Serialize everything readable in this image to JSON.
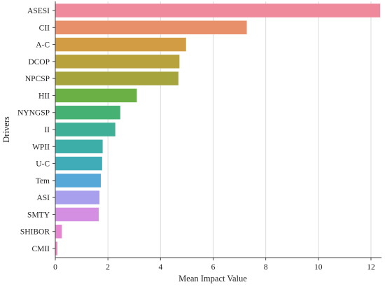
{
  "chart_data": {
    "type": "bar",
    "orientation": "horizontal",
    "xlabel": "Mean Impact Value",
    "ylabel": "Drivers",
    "xlim": [
      0,
      12.4
    ],
    "xticks": [
      "0",
      "2",
      "4",
      "6",
      "8",
      "10",
      "12"
    ],
    "grid": "vertical",
    "categories": [
      "ASESI",
      "CII",
      "A-C",
      "DCOP",
      "NPCSP",
      "HII",
      "NYNGSP",
      "II",
      "WPII",
      "U-C",
      "Tem",
      "ASI",
      "SMTY",
      "SHIBOR",
      "CMII"
    ],
    "values": [
      12.35,
      7.28,
      4.97,
      4.72,
      4.68,
      3.1,
      2.47,
      2.28,
      1.8,
      1.78,
      1.73,
      1.68,
      1.65,
      0.25,
      0.08
    ],
    "colors": [
      "#ee8a9b",
      "#e8906a",
      "#d19c43",
      "#b7a23e",
      "#a6a43d",
      "#6bb044",
      "#45b172",
      "#3fb095",
      "#3eaea8",
      "#40acb8",
      "#56a8d8",
      "#a8a0ec",
      "#d48fe2",
      "#e487d0",
      "#e98bc0"
    ]
  }
}
